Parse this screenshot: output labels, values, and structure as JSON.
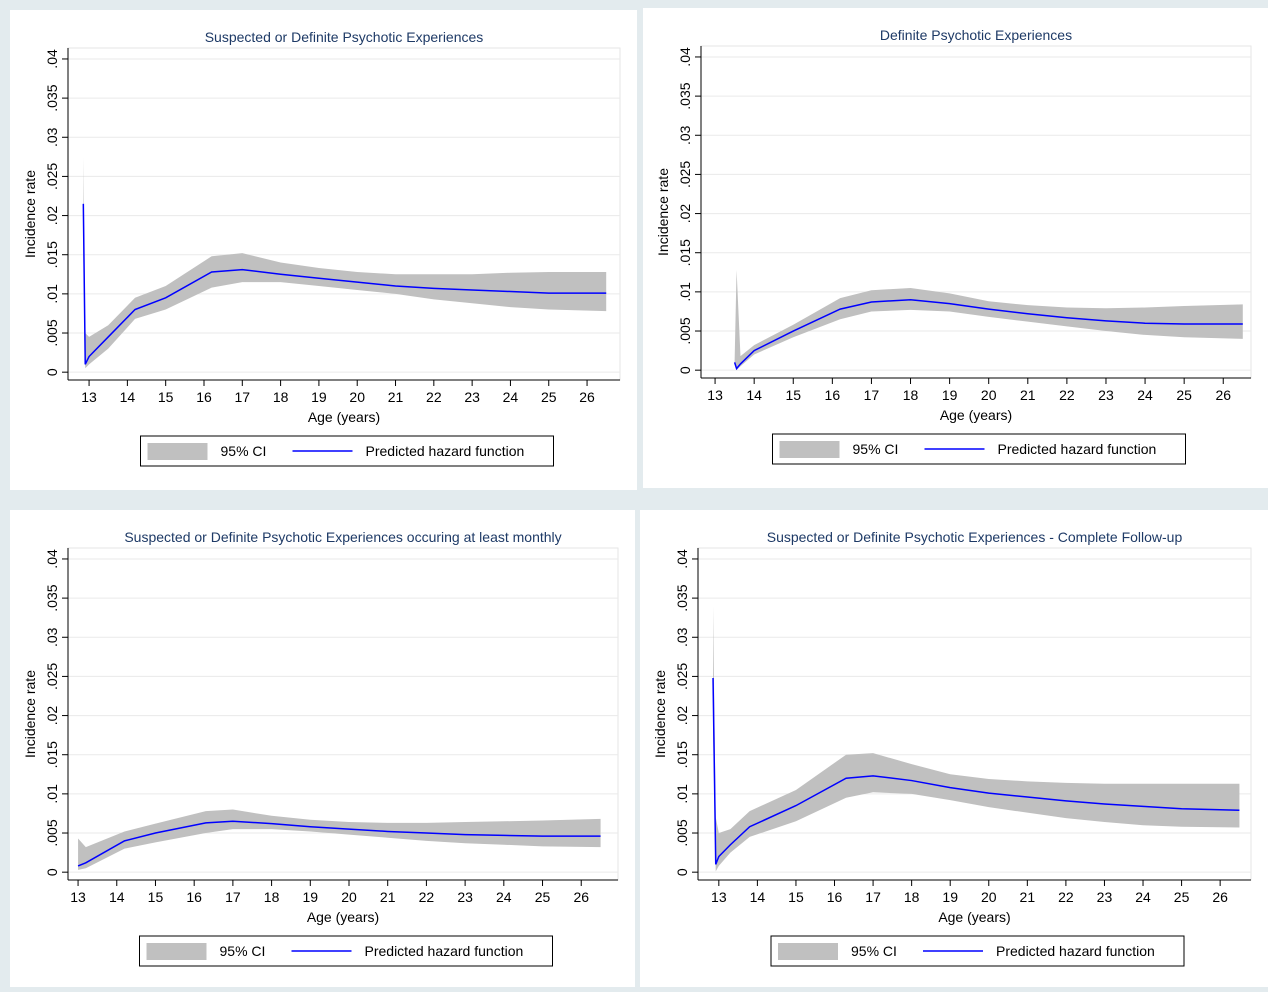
{
  "chart_data": [
    {
      "type": "line",
      "title": "Suspected or Definite Psychotic Experiences",
      "xlabel": "Age (years)",
      "ylabel": "Incidence rate",
      "x": [
        12.85,
        12.9,
        13,
        13.5,
        14.2,
        15,
        16.2,
        17,
        18,
        19,
        20,
        21,
        22,
        23,
        24,
        25,
        26.5
      ],
      "series": [
        {
          "name": "95% CI",
          "color": "#c0c0c0",
          "lower": [
            0.015,
            0.0005,
            0.001,
            0.003,
            0.0068,
            0.008,
            0.0108,
            0.0115,
            0.0115,
            0.011,
            0.0105,
            0.01,
            0.0093,
            0.0088,
            0.0083,
            0.008,
            0.0078
          ],
          "upper": [
            0.0275,
            0.005,
            0.0045,
            0.006,
            0.0095,
            0.011,
            0.0148,
            0.0152,
            0.014,
            0.0133,
            0.0128,
            0.0125,
            0.0125,
            0.0125,
            0.0127,
            0.0128,
            0.0128
          ]
        },
        {
          "name": "Predicted hazard function",
          "color": "#0000ff",
          "values": [
            0.0215,
            0.001,
            0.002,
            0.0045,
            0.008,
            0.0095,
            0.0128,
            0.0131,
            0.0125,
            0.012,
            0.0115,
            0.011,
            0.0107,
            0.0105,
            0.0103,
            0.0101,
            0.0101
          ]
        }
      ],
      "xlim": [
        12.45,
        26.86
      ],
      "ylim": [
        -0.001,
        0.0414
      ],
      "xticks": [
        13,
        14,
        15,
        16,
        17,
        18,
        19,
        20,
        21,
        22,
        23,
        24,
        25,
        26
      ],
      "yticks": [
        0,
        {
          "value": 0.005,
          "label": ".005"
        },
        {
          "value": 0.01,
          "label": ".01"
        },
        {
          "value": 0.015,
          "label": ".015"
        },
        {
          "value": 0.02,
          "label": ".02"
        },
        {
          "value": 0.025,
          "label": ".025"
        },
        {
          "value": 0.03,
          "label": ".03"
        },
        {
          "value": 0.035,
          "label": ".035"
        },
        {
          "value": 0.04,
          "label": ".04"
        }
      ],
      "grid": true
    },
    {
      "type": "line",
      "title": "Definite Psychotic Experiences",
      "xlabel": "Age (years)",
      "ylabel": "Incidence rate",
      "x": [
        13.5,
        13.55,
        13.65,
        14,
        15,
        16.2,
        17,
        18,
        19,
        20,
        21,
        22,
        23,
        24,
        25,
        26.5
      ],
      "series": [
        {
          "name": "95% CI",
          "color": "#c0c0c0",
          "lower": [
            0.0008,
            0,
            0.0005,
            0.002,
            0.0042,
            0.0065,
            0.0075,
            0.0077,
            0.0075,
            0.0068,
            0.0062,
            0.0056,
            0.005,
            0.0045,
            0.0042,
            0.004
          ],
          "upper": [
            0.0012,
            0.0128,
            0.0018,
            0.0032,
            0.0058,
            0.0092,
            0.0102,
            0.0105,
            0.0098,
            0.0088,
            0.0083,
            0.008,
            0.0079,
            0.008,
            0.0082,
            0.0084
          ]
        },
        {
          "name": "Predicted hazard function",
          "color": "#0000ff",
          "values": [
            0.001,
            0.0002,
            0.0008,
            0.0025,
            0.005,
            0.0078,
            0.0087,
            0.009,
            0.0085,
            0.0078,
            0.0072,
            0.0067,
            0.0063,
            0.006,
            0.0059,
            0.0059
          ]
        }
      ],
      "xlim": [
        12.64,
        26.71
      ],
      "ylim": [
        -0.001,
        0.0414
      ],
      "xticks": [
        13,
        14,
        15,
        16,
        17,
        18,
        19,
        20,
        21,
        22,
        23,
        24,
        25,
        26
      ],
      "yticks": [
        0,
        {
          "value": 0.005,
          "label": ".005"
        },
        {
          "value": 0.01,
          "label": ".01"
        },
        {
          "value": 0.015,
          "label": ".015"
        },
        {
          "value": 0.02,
          "label": ".02"
        },
        {
          "value": 0.025,
          "label": ".025"
        },
        {
          "value": 0.03,
          "label": ".03"
        },
        {
          "value": 0.035,
          "label": ".035"
        },
        {
          "value": 0.04,
          "label": ".04"
        }
      ],
      "grid": true
    },
    {
      "type": "line",
      "title": "Suspected or Definite Psychotic Experiences occuring at least monthly",
      "xlabel": "Age (years)",
      "ylabel": "Incidence rate",
      "x": [
        13,
        13.2,
        14.2,
        15,
        16.3,
        17,
        18,
        19,
        20,
        21,
        22,
        23,
        24,
        25,
        26.5
      ],
      "series": [
        {
          "name": "95% CI",
          "color": "#c0c0c0",
          "lower": [
            0.0003,
            0.0005,
            0.003,
            0.0038,
            0.005,
            0.0055,
            0.0055,
            0.0052,
            0.0048,
            0.0044,
            0.004,
            0.0037,
            0.0035,
            0.0033,
            0.0032
          ],
          "upper": [
            0.0043,
            0.0032,
            0.0052,
            0.0062,
            0.0078,
            0.008,
            0.0072,
            0.0067,
            0.0064,
            0.0063,
            0.0063,
            0.0064,
            0.0065,
            0.0066,
            0.0068
          ]
        },
        {
          "name": "Predicted hazard function",
          "color": "#0000ff",
          "values": [
            0.0008,
            0.0012,
            0.004,
            0.005,
            0.0063,
            0.0065,
            0.0062,
            0.0058,
            0.0055,
            0.0052,
            0.005,
            0.0048,
            0.0047,
            0.0046,
            0.0046
          ]
        }
      ],
      "xlim": [
        12.74,
        26.95
      ],
      "ylim": [
        -0.001,
        0.0414
      ],
      "xticks": [
        13,
        14,
        15,
        16,
        17,
        18,
        19,
        20,
        21,
        22,
        23,
        24,
        25,
        26
      ],
      "yticks": [
        0,
        {
          "value": 0.005,
          "label": ".005"
        },
        {
          "value": 0.01,
          "label": ".01"
        },
        {
          "value": 0.015,
          "label": ".015"
        },
        {
          "value": 0.02,
          "label": ".02"
        },
        {
          "value": 0.025,
          "label": ".025"
        },
        {
          "value": 0.03,
          "label": ".03"
        },
        {
          "value": 0.035,
          "label": ".035"
        },
        {
          "value": 0.04,
          "label": ".04"
        }
      ],
      "grid": true
    },
    {
      "type": "line",
      "title": "Suspected or Definite Psychotic Experiences - Complete Follow-up",
      "xlabel": "Age (years)",
      "ylabel": "Incidence rate",
      "x": [
        12.85,
        12.92,
        13,
        13.3,
        13.8,
        15,
        16.3,
        17,
        18,
        19,
        20,
        21,
        22,
        23,
        24,
        25,
        26.5
      ],
      "series": [
        {
          "name": "95% CI",
          "color": "#c0c0c0",
          "lower": [
            0.018,
            0.0001,
            0.0008,
            0.0025,
            0.0045,
            0.0065,
            0.0095,
            0.0102,
            0.01,
            0.0092,
            0.0083,
            0.0076,
            0.0069,
            0.0064,
            0.006,
            0.0058,
            0.0057
          ],
          "upper": [
            0.034,
            0.007,
            0.005,
            0.0055,
            0.0078,
            0.0105,
            0.015,
            0.0152,
            0.0138,
            0.0125,
            0.0119,
            0.0116,
            0.0114,
            0.0113,
            0.0113,
            0.0113,
            0.0113
          ]
        },
        {
          "name": "Predicted hazard function",
          "color": "#0000ff",
          "values": [
            0.0248,
            0.001,
            0.002,
            0.0035,
            0.0058,
            0.0085,
            0.012,
            0.0123,
            0.0117,
            0.0108,
            0.0101,
            0.0096,
            0.0091,
            0.0087,
            0.0084,
            0.0081,
            0.0079
          ]
        }
      ],
      "xlim": [
        12.46,
        26.8
      ],
      "ylim": [
        -0.001,
        0.0414
      ],
      "xticks": [
        13,
        14,
        15,
        16,
        17,
        18,
        19,
        20,
        21,
        22,
        23,
        24,
        25,
        26
      ],
      "yticks": [
        0,
        {
          "value": 0.005,
          "label": ".005"
        },
        {
          "value": 0.01,
          "label": ".01"
        },
        {
          "value": 0.015,
          "label": ".015"
        },
        {
          "value": 0.02,
          "label": ".02"
        },
        {
          "value": 0.025,
          "label": ".025"
        },
        {
          "value": 0.03,
          "label": ".03"
        },
        {
          "value": 0.035,
          "label": ".035"
        },
        {
          "value": 0.04,
          "label": ".04"
        }
      ],
      "grid": true
    }
  ]
}
